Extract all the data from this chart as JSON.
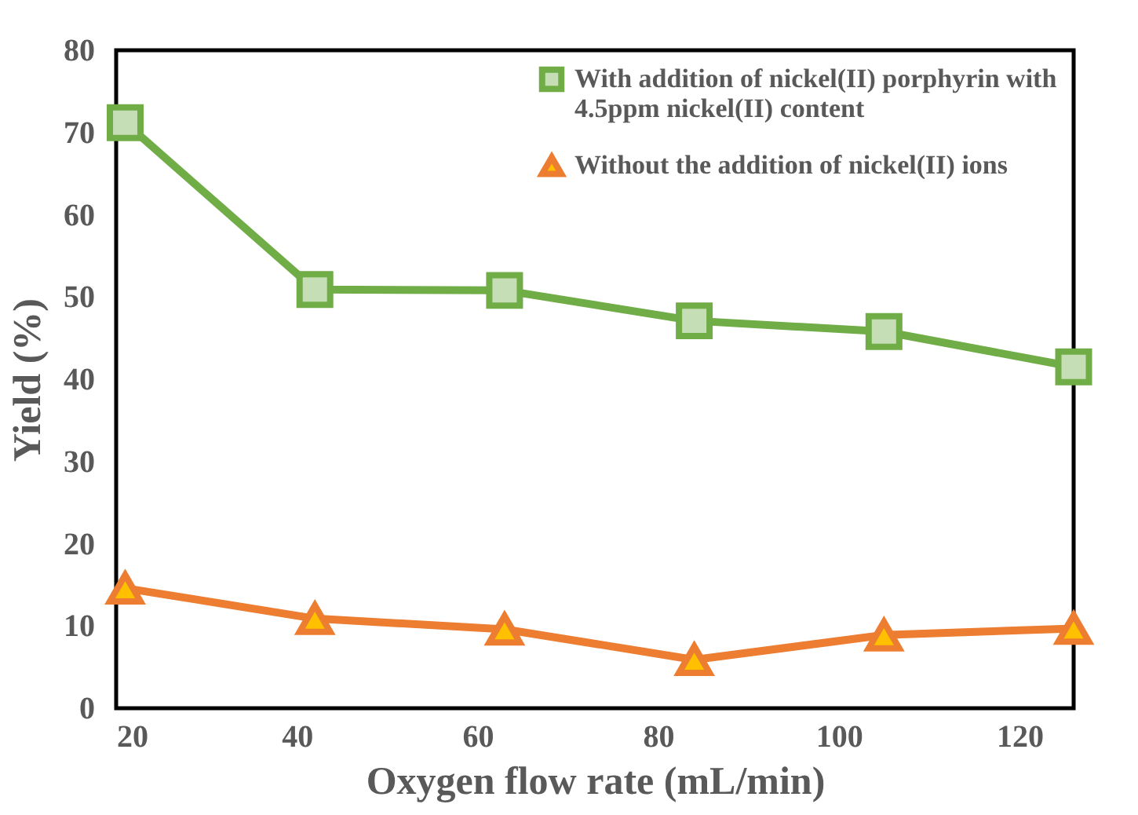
{
  "chart_data": {
    "type": "line",
    "xlabel": "Oxygen flow rate (mL/min)",
    "ylabel": "Yield (%)",
    "x": [
      21,
      42,
      63,
      84,
      105,
      126
    ],
    "series": [
      {
        "name": "With addition of nickel(II) porphyrin with 4.5ppm nickel(II) content",
        "color": "#70ad47",
        "marker": "square",
        "values": [
          71.2,
          50.9,
          50.8,
          47.1,
          45.8,
          41.5
        ]
      },
      {
        "name": "Without the addition of nickel(II) ions",
        "color": "#ed7d31",
        "marker": "triangle",
        "values": [
          14.6,
          10.9,
          9.6,
          5.9,
          8.9,
          9.7
        ]
      }
    ],
    "xlim": [
      20,
      126
    ],
    "xticks": [
      20,
      40,
      60,
      80,
      100,
      120
    ],
    "ylim": [
      0,
      80
    ],
    "yticks": [
      0,
      10,
      20,
      30,
      40,
      50,
      60,
      70,
      80
    ],
    "grid": false,
    "legend": "top right",
    "line_style": "solid"
  }
}
